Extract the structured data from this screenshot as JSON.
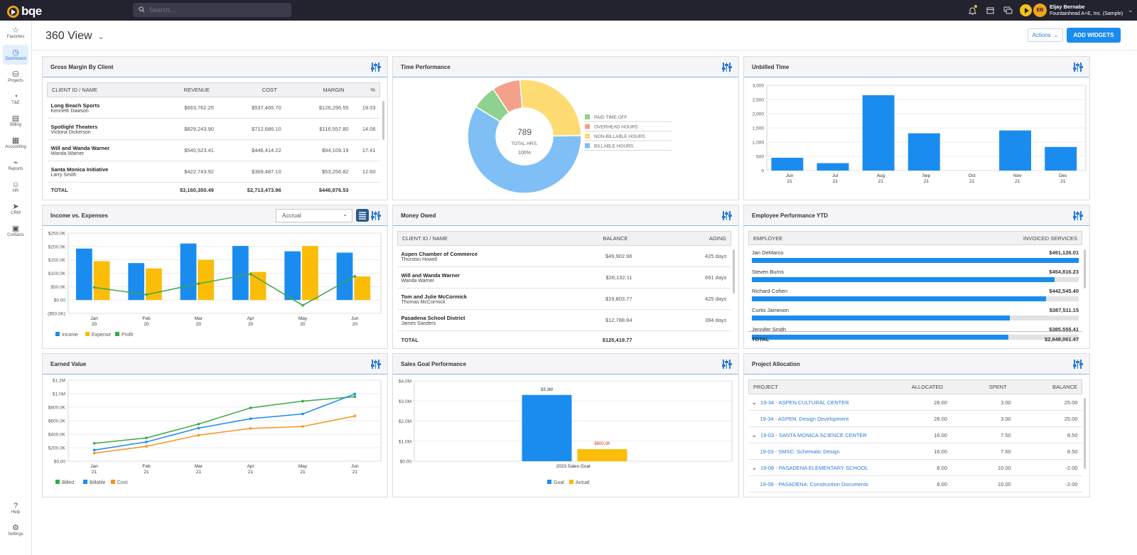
{
  "topbar": {
    "logo": "bqe",
    "search_placeholder": "Search...",
    "user_initials": "EB",
    "user_name": "Eljay Bernabe",
    "user_company": "Fountainhead A+E, Inc. (Sample)"
  },
  "sidebar": {
    "items": [
      {
        "label": "Favorites",
        "icon": "star-icon",
        "glyph": "☆"
      },
      {
        "label": "Dashboard",
        "icon": "dashboard-icon",
        "glyph": "◷"
      },
      {
        "label": "Projects",
        "icon": "projects-icon",
        "glyph": "⛁"
      },
      {
        "label": "T&E",
        "icon": "clock-icon",
        "glyph": "◔"
      },
      {
        "label": "Billing",
        "icon": "billing-icon",
        "glyph": "▤"
      },
      {
        "label": "Accounting",
        "icon": "accounting-icon",
        "glyph": "▦"
      },
      {
        "label": "Reports",
        "icon": "reports-icon",
        "glyph": "⌁"
      },
      {
        "label": "HR",
        "icon": "hr-icon",
        "glyph": "☺"
      },
      {
        "label": "CRM",
        "icon": "crm-icon",
        "glyph": "➤"
      },
      {
        "label": "Contacts",
        "icon": "contacts-icon",
        "glyph": "▣"
      }
    ],
    "bottom": [
      {
        "label": "Help",
        "icon": "help-icon",
        "glyph": "?"
      },
      {
        "label": "Settings",
        "icon": "settings-icon",
        "glyph": "⚙"
      }
    ]
  },
  "header": {
    "title": "360 View",
    "actions_label": "Actions",
    "add_widgets_label": "ADD WIDGETS"
  },
  "gross_margin": {
    "title": "Gross Margin By Client",
    "columns": [
      "CLIENT ID / NAME",
      "REVENUE",
      "COST",
      "MARGIN",
      "%"
    ],
    "rows": [
      {
        "name": "Long Beach Sports",
        "contact": "Kenneth Dawson",
        "revenue": "$663,762.25",
        "cost": "$537,465.70",
        "margin": "$126,296.55",
        "pct": "19.03"
      },
      {
        "name": "Spotlight Theaters",
        "contact": "Victoria Dickerson",
        "revenue": "$829,243.90",
        "cost": "$712,686.10",
        "margin": "$116,557.80",
        "pct": "14.06"
      },
      {
        "name": "Will and Wanda Warner",
        "contact": "Wanda Warner",
        "revenue": "$540,523.41",
        "cost": "$446,414.22",
        "margin": "$94,109.19",
        "pct": "17.41"
      },
      {
        "name": "Santa Monica Initiative",
        "contact": "Larry Smith",
        "revenue": "$422,743.92",
        "cost": "$369,487.10",
        "margin": "$53,256.82",
        "pct": "12.60"
      }
    ],
    "total_label": "TOTAL",
    "total_revenue": "$3,160,350.49",
    "total_cost": "$2,713,473.96",
    "total_margin": "$446,876.53"
  },
  "time_performance": {
    "title": "Time Performance",
    "center_value": "789",
    "center_label": "TOTAL HRS.",
    "center_pct": "100%",
    "legend": [
      {
        "label": "PAID TIME OFF",
        "color": "#8fd18f"
      },
      {
        "label": "OVERHEAD HOURS",
        "color": "#f4a08a"
      },
      {
        "label": "NON-BILLABLE HOURS",
        "color": "#fedb73"
      },
      {
        "label": "BILLABLE HOURS",
        "color": "#7fbff5"
      }
    ]
  },
  "unbilled_time": {
    "title": "Unbilled Time"
  },
  "income_expenses": {
    "title": "Income vs. Expenses",
    "select_value": "Accrual",
    "legend": [
      "Income",
      "Expense",
      "Profit"
    ]
  },
  "money_owed": {
    "title": "Money Owed",
    "columns": [
      "CLIENT ID / NAME",
      "BALANCE",
      "AGING"
    ],
    "rows": [
      {
        "name": "Aspen Chamber of Commerce",
        "contact": "Thurston Howell",
        "balance": "$49,902.96",
        "aging": "425 days"
      },
      {
        "name": "Will and Wanda Warner",
        "contact": "Wanda Warner",
        "balance": "$28,132.11",
        "aging": "691 days"
      },
      {
        "name": "Tom and Julie McCormick",
        "contact": "Thomas McCormick",
        "balance": "$19,803.77",
        "aging": "425 days"
      },
      {
        "name": "Pasadena School District",
        "contact": "James Sanders",
        "balance": "$12,788.84",
        "aging": "394 days"
      }
    ],
    "total_label": "TOTAL",
    "total_balance": "$125,419.77"
  },
  "employee_perf": {
    "title": "Employee Performance YTD",
    "columns": [
      "EMPLOYEE",
      "INVOICED SERVICES"
    ],
    "rows": [
      {
        "name": "Jan DeMarco",
        "value": "$491,126.01",
        "fill": 1.0
      },
      {
        "name": "Steven Burns",
        "value": "$454,816.23",
        "fill": 0.926
      },
      {
        "name": "Richard Cohen",
        "value": "$442,545.40",
        "fill": 0.901
      },
      {
        "name": "Curtis Jameson",
        "value": "$387,511.15",
        "fill": 0.789
      },
      {
        "name": "Jennifer Smith",
        "value": "$385,555.41",
        "fill": 0.785
      }
    ],
    "total_label": "TOTAL",
    "total_value": "$2,648,061.47"
  },
  "earned_value": {
    "title": "Earned Value",
    "legend": [
      "Billed",
      "Billable",
      "Cost"
    ]
  },
  "sales_goal": {
    "title": "Sales Goal Performance",
    "legend": [
      "Goal",
      "Actual"
    ]
  },
  "project_allocation": {
    "title": "Project Allocation",
    "columns": [
      "PROJECT",
      "ALLOCATED",
      "SPENT",
      "BALANCE"
    ],
    "rows": [
      {
        "name": "19-34 - ASPEN CULTURAL CENTER",
        "allocated": "28.00",
        "spent": "3.00",
        "balance": "25.00",
        "parent": true
      },
      {
        "name": "19-34 - ASPEN: Design Development",
        "allocated": "28.00",
        "spent": "3.00",
        "balance": "25.00",
        "parent": false
      },
      {
        "name": "19-03 - SANTA MONICA SCIENCE CENTER",
        "allocated": "16.00",
        "spent": "7.50",
        "balance": "8.50",
        "parent": true
      },
      {
        "name": "19-03 - SMSC: Schematic Design",
        "allocated": "16.00",
        "spent": "7.50",
        "balance": "8.50",
        "parent": false
      },
      {
        "name": "19-08 - PASADENA ELEMENTARY SCHOOL",
        "allocated": "8.00",
        "spent": "10.00",
        "balance": "-2.00",
        "parent": true
      },
      {
        "name": "19-08 - PASADENA: Construction Documents",
        "allocated": "8.00",
        "spent": "10.00",
        "balance": "-2.00",
        "parent": false
      }
    ]
  },
  "chart_data": [
    {
      "id": "time_performance",
      "type": "pie",
      "categories": [
        "PAID TIME OFF",
        "OVERHEAD HOURS",
        "NON-BILLABLE HOURS",
        "BILLABLE HOURS"
      ],
      "values": [
        7,
        8,
        26,
        59
      ],
      "colors": [
        "#8fd18f",
        "#f4a08a",
        "#fedb73",
        "#7fbff5"
      ]
    },
    {
      "id": "unbilled_time",
      "type": "bar",
      "categories": [
        [
          "Jun",
          "21"
        ],
        [
          "Jul",
          "21"
        ],
        [
          "Aug",
          "21"
        ],
        [
          "Sep",
          "21"
        ],
        [
          "Oct",
          "21"
        ],
        [
          "Nov",
          "21"
        ],
        [
          "Dec",
          "21"
        ]
      ],
      "values": [
        450,
        260,
        2650,
        1310,
        0,
        1410,
        830
      ],
      "ylim": [
        0,
        3000
      ],
      "yticks": [
        "0",
        "500",
        "1,000",
        "1,500",
        "2,000",
        "2,500",
        "3,000"
      ],
      "color": "#1a8cf0"
    },
    {
      "id": "income_expenses",
      "type": "bar",
      "categories": [
        [
          "Jan",
          "20"
        ],
        [
          "Feb",
          "20"
        ],
        [
          "Mar",
          "20"
        ],
        [
          "Apr",
          "20"
        ],
        [
          "May",
          "20"
        ],
        [
          "Jun",
          "20"
        ]
      ],
      "series": [
        {
          "name": "Income",
          "values": [
            192,
            138,
            211,
            202,
            182,
            177
          ],
          "color": "#1a8cf0"
        },
        {
          "name": "Expense",
          "values": [
            145,
            118,
            150,
            105,
            202,
            88
          ],
          "color": "#fbbd08"
        },
        {
          "name": "Profit",
          "values": [
            47,
            20,
            61,
            97,
            -20,
            89
          ],
          "color": "#3aa84a",
          "kind": "line"
        }
      ],
      "ylim": [
        -50,
        250
      ],
      "yticks": [
        "($50.0K)",
        "$0.00",
        "$50.0K",
        "$100.0K",
        "$150.0K",
        "$200.0K",
        "$250.0K"
      ]
    },
    {
      "id": "earned_value",
      "type": "line",
      "categories": [
        [
          "Jan",
          "21"
        ],
        [
          "Feb",
          "21"
        ],
        [
          "Mar",
          "21"
        ],
        [
          "Apr",
          "21"
        ],
        [
          "May",
          "21"
        ],
        [
          "Jun",
          "21"
        ]
      ],
      "series": [
        {
          "name": "Billed",
          "values": [
            265,
            345,
            550,
            790,
            890,
            955
          ],
          "color": "#3aa84a"
        },
        {
          "name": "Billable",
          "values": [
            165,
            285,
            490,
            630,
            700,
            995
          ],
          "color": "#1a8cf0"
        },
        {
          "name": "Cost",
          "values": [
            120,
            220,
            385,
            485,
            515,
            670
          ],
          "color": "#f7931e"
        }
      ],
      "ylim": [
        0,
        1200
      ],
      "yticks": [
        "$0.00",
        "$200.0K",
        "$400.0K",
        "$600.0K",
        "$800.0K",
        "$1.0M",
        "$1.2M"
      ]
    },
    {
      "id": "sales_goal",
      "type": "bar",
      "categories": [
        "2023 Sales Goal"
      ],
      "series": [
        {
          "name": "Goal",
          "values": [
            3.3
          ],
          "label": "$3.3M",
          "color": "#1a8cf0"
        },
        {
          "name": "Actual",
          "values": [
            0.6
          ],
          "label": "$600.0K",
          "color": "#fbbd08"
        }
      ],
      "ylim": [
        0,
        4
      ],
      "yticks": [
        "$0.00",
        "$1.0M",
        "$2.0M",
        "$3.0M",
        "$4.0M"
      ]
    }
  ]
}
